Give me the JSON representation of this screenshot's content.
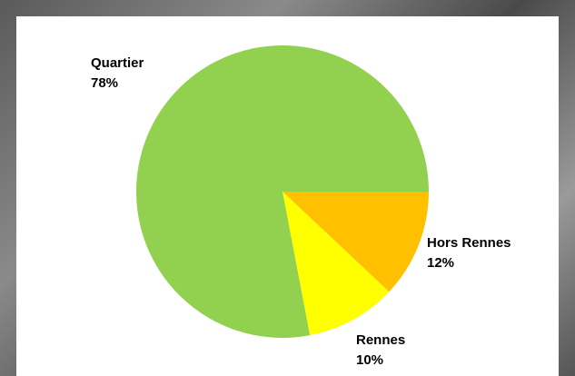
{
  "chart_data": {
    "type": "pie",
    "categories": [
      "Hors Rennes",
      "Rennes",
      "Quartier"
    ],
    "values": [
      12,
      10,
      78
    ],
    "value_labels": [
      "12%",
      "10%",
      "78%"
    ],
    "colors": [
      "#FFC000",
      "#FFFF00",
      "#92D050"
    ]
  }
}
